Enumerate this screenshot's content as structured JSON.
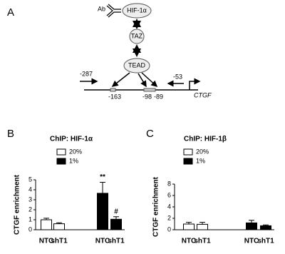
{
  "diagram": {
    "panel": "A",
    "antibody": "Ab",
    "nodes": [
      "HIF-1α",
      "TAZ",
      "TEAD"
    ],
    "positions": [
      "-287",
      "-163",
      "-98",
      "-89",
      "-53"
    ],
    "gene": "CTGF"
  },
  "chart_data": [
    {
      "type": "bar",
      "panel": "B",
      "title": "ChIP: HIF-1α",
      "y_label": "CTGF enrichment",
      "categories": [
        "NTC",
        "shT1",
        "NTC",
        "shT1"
      ],
      "series": [
        {
          "name": "20%",
          "color": "#ffffff",
          "values": [
            1.0,
            0.6,
            null,
            null
          ],
          "errors": [
            0.15,
            0.1,
            null,
            null
          ],
          "annotations": [
            null,
            null,
            null,
            null
          ]
        },
        {
          "name": "1%",
          "color": "#000000",
          "values": [
            null,
            null,
            3.65,
            1.05
          ],
          "errors": [
            null,
            null,
            1.1,
            0.25
          ],
          "annotations": [
            null,
            null,
            "**",
            "#"
          ]
        }
      ],
      "ylim": [
        0,
        5
      ],
      "yticks": [
        0,
        1,
        2,
        3,
        4,
        5
      ]
    },
    {
      "type": "bar",
      "panel": "C",
      "title": "ChIP: HIF-1β",
      "y_label": "CTGF enrichment",
      "categories": [
        "NTC",
        "shT1",
        "NTC",
        "shT1"
      ],
      "series": [
        {
          "name": "20%",
          "color": "#ffffff",
          "values": [
            1.0,
            0.95,
            null,
            null
          ],
          "errors": [
            0.3,
            0.35,
            null,
            null
          ],
          "annotations": [
            null,
            null,
            null,
            null
          ]
        },
        {
          "name": "1%",
          "color": "#000000",
          "values": [
            null,
            null,
            1.2,
            0.7
          ],
          "errors": [
            null,
            null,
            0.45,
            0.15
          ],
          "annotations": [
            null,
            null,
            null,
            null
          ]
        }
      ],
      "ylim": [
        0,
        8
      ],
      "yticks": [
        0,
        2,
        4,
        6,
        8
      ]
    }
  ]
}
